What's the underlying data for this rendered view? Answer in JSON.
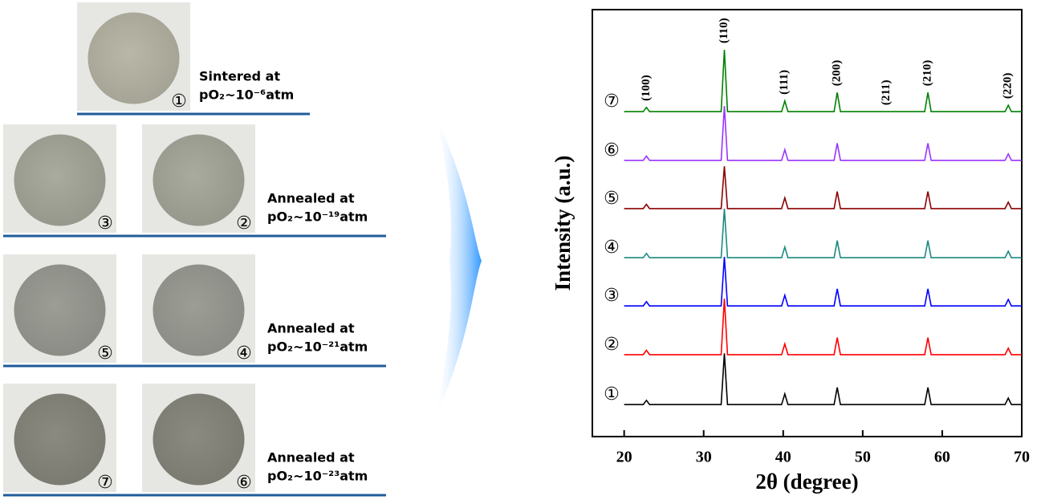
{
  "photos": {
    "groups": [
      {
        "labels": [
          "①"
        ],
        "caption": [
          "Sintered at",
          "pO₂~10⁻⁶atm"
        ]
      },
      {
        "labels": [
          "③",
          "②"
        ],
        "caption": [
          "Annealed at",
          "pO₂~10⁻¹⁹atm"
        ]
      },
      {
        "labels": [
          "⑤",
          "④"
        ],
        "caption": [
          "Annealed at",
          "pO₂~10⁻²¹atm"
        ]
      },
      {
        "labels": [
          "⑦",
          "⑥"
        ],
        "caption": [
          "Annealed at",
          "pO₂~10⁻²³atm"
        ]
      }
    ]
  },
  "chart_data": {
    "type": "line",
    "xlabel": "2θ (degree)",
    "ylabel": "Intensity (a.u.)",
    "xlim": [
      16,
      70
    ],
    "ylim": [
      0,
      100
    ],
    "xticks": [
      20,
      30,
      40,
      50,
      60,
      70
    ],
    "x": [
      20,
      22.4,
      22.8,
      23.2,
      32.2,
      32.6,
      33.0,
      39.8,
      40.2,
      40.6,
      46.4,
      46.8,
      47.2,
      57.8,
      58.2,
      58.6,
      67.9,
      68.3,
      68.7,
      70
    ],
    "series": [
      {
        "name": "①",
        "color": "#000000",
        "values": [
          7.5,
          7.5,
          8.5,
          7.5,
          7.5,
          19.5,
          7.5,
          7.5,
          10,
          7.5,
          7.5,
          11.5,
          7.5,
          7.5,
          11.5,
          7.5,
          7.5,
          9,
          7.5,
          7.5
        ]
      },
      {
        "name": "②",
        "color": "#ff0000",
        "values": [
          19.2,
          19.2,
          20.2,
          19.2,
          19.2,
          32.3,
          19.2,
          19.2,
          21.7,
          19.2,
          19.2,
          23.2,
          19.2,
          19.2,
          23.2,
          19.2,
          19.2,
          20.7,
          19.2,
          19.2
        ]
      },
      {
        "name": "③",
        "color": "#0000ff",
        "values": [
          30.6,
          30.6,
          31.6,
          30.6,
          30.6,
          42.1,
          30.6,
          30.6,
          33.1,
          30.6,
          30.6,
          34.6,
          30.6,
          30.6,
          34.6,
          30.6,
          30.6,
          32.1,
          30.6,
          30.6
        ]
      },
      {
        "name": "④",
        "color": "#1a8a80",
        "values": [
          41.9,
          41.9,
          42.9,
          41.9,
          41.9,
          53.4,
          41.9,
          41.9,
          44.4,
          41.9,
          41.9,
          45.9,
          41.9,
          41.9,
          45.9,
          41.9,
          41.9,
          43.4,
          41.9,
          41.9
        ]
      },
      {
        "name": "⑤",
        "color": "#8b0000",
        "values": [
          53.4,
          53.4,
          54.4,
          53.4,
          53.4,
          63.3,
          53.4,
          53.4,
          55.9,
          53.4,
          53.4,
          57.4,
          53.4,
          53.4,
          57.4,
          53.4,
          53.4,
          54.9,
          53.4,
          53.4
        ]
      },
      {
        "name": "⑥",
        "color": "#9933ff",
        "values": [
          64.7,
          64.7,
          65.7,
          64.7,
          64.7,
          77.4,
          64.7,
          64.7,
          67.2,
          64.7,
          64.7,
          68.7,
          64.7,
          64.7,
          68.7,
          64.7,
          64.7,
          66.2,
          64.7,
          64.7
        ]
      },
      {
        "name": "⑦",
        "color": "#008000",
        "values": [
          76.1,
          76.1,
          77.1,
          76.1,
          76.1,
          90.6,
          76.1,
          76.1,
          78.6,
          76.1,
          76.1,
          80.6,
          76.1,
          76.1,
          80.6,
          76.1,
          76.1,
          77.6,
          76.1,
          76.1
        ]
      }
    ],
    "annotations": [
      {
        "text": "(100)",
        "x": 22.8
      },
      {
        "text": "(110)",
        "x": 32.6
      },
      {
        "text": "(111)",
        "x": 40.2
      },
      {
        "text": "(200)",
        "x": 46.8
      },
      {
        "text": "(211)",
        "x": 53
      },
      {
        "text": "(210)",
        "x": 58.2
      },
      {
        "text": "(220)",
        "x": 68.3
      }
    ]
  }
}
